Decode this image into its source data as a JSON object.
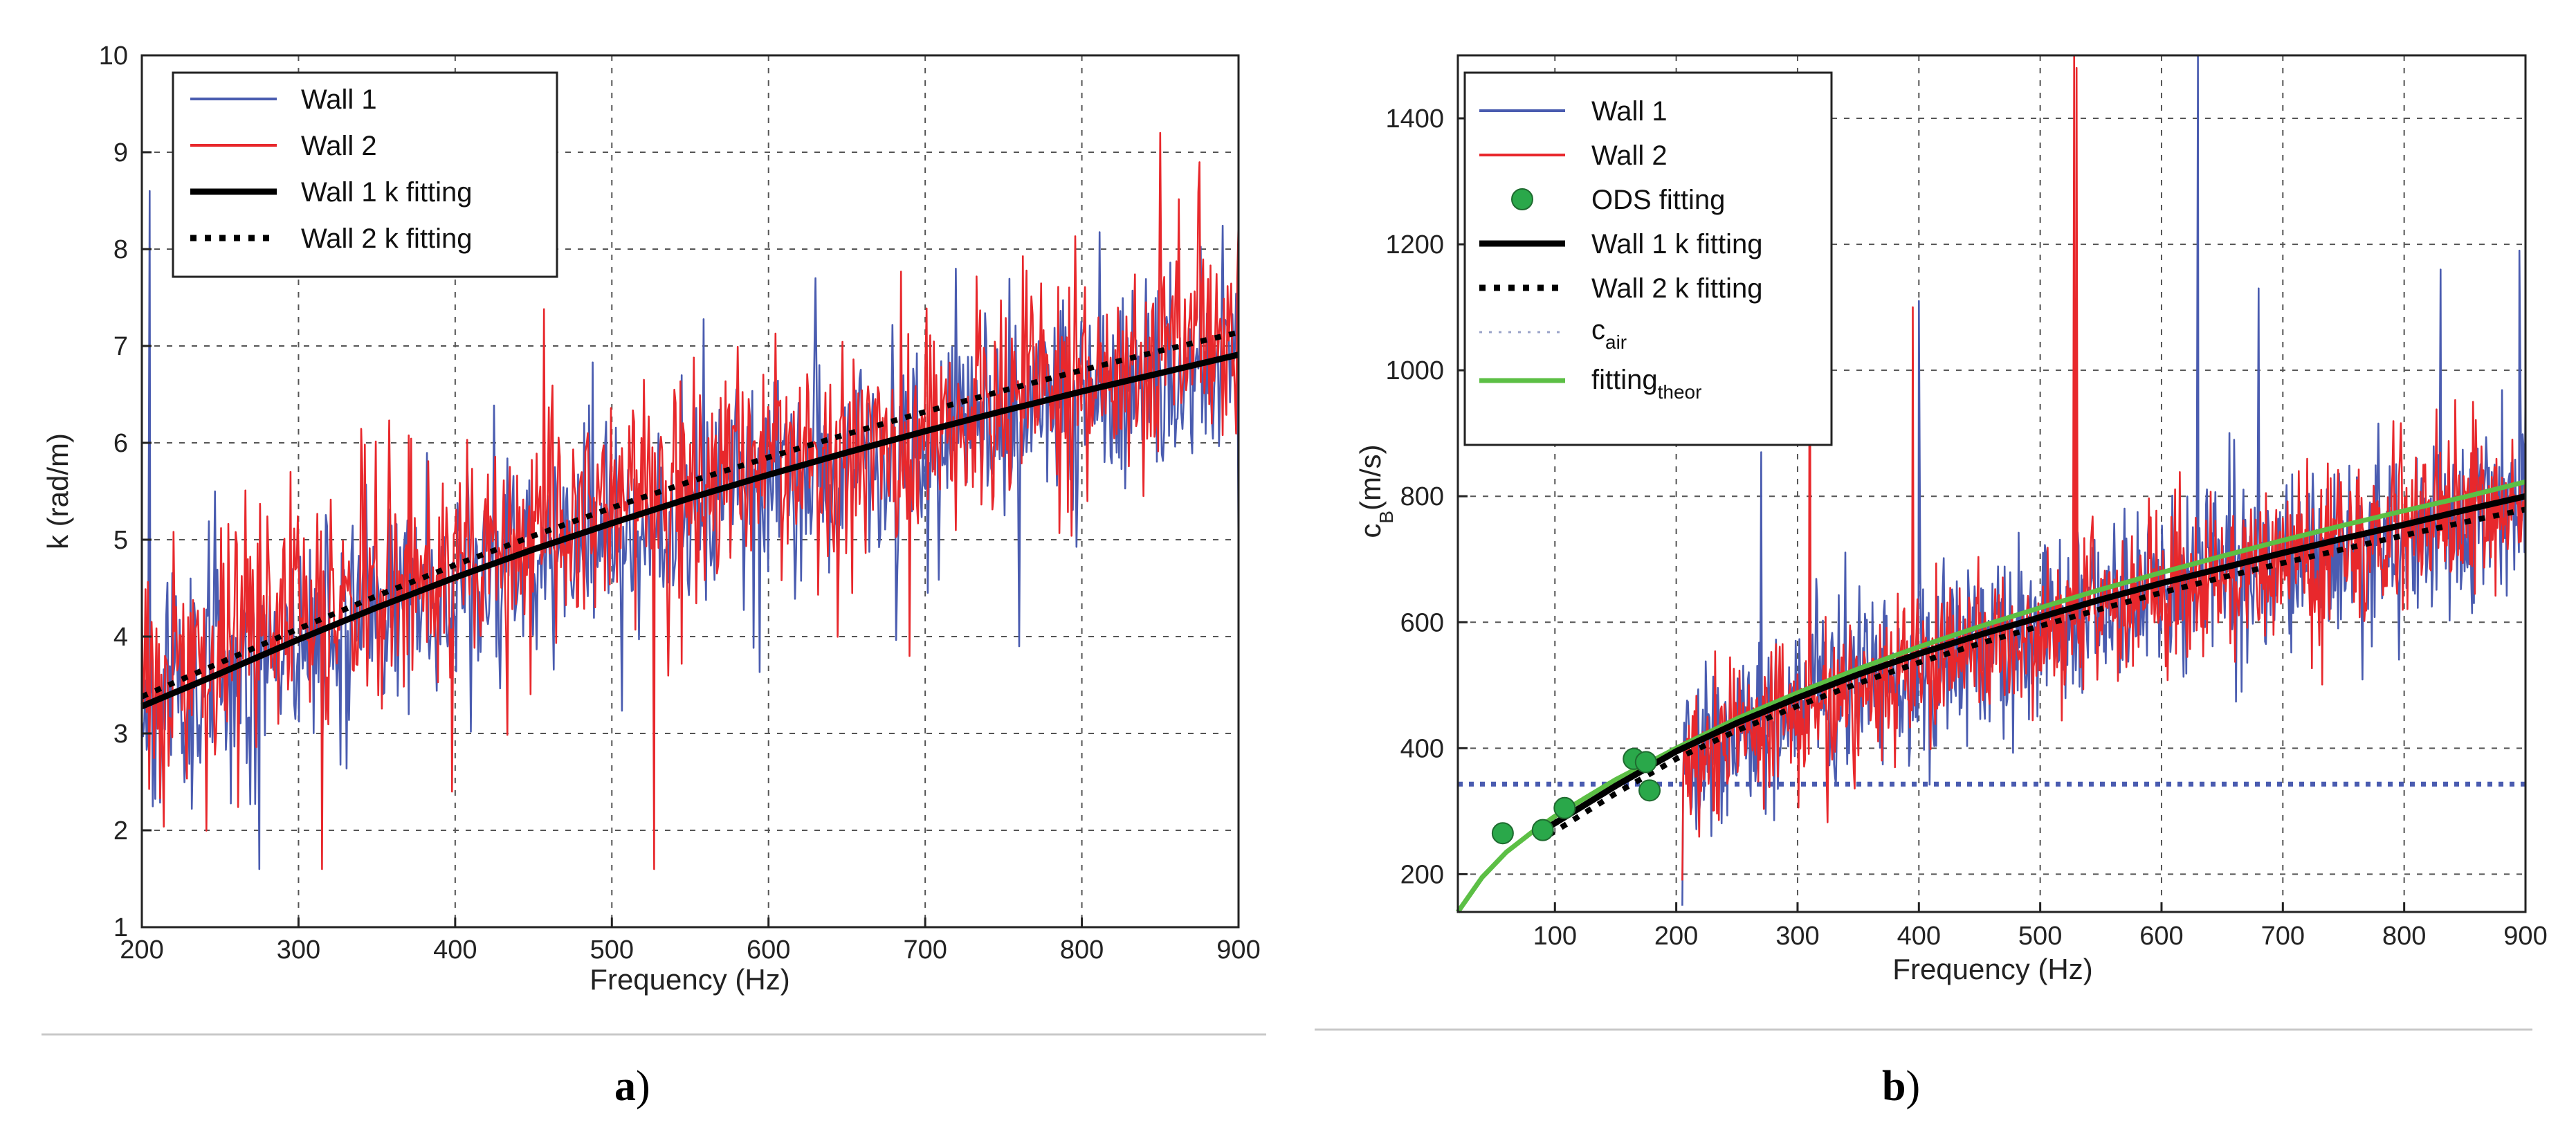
{
  "chart_data": [
    {
      "type": "line",
      "panel_label": "a",
      "panel_paren": ")",
      "title": "",
      "xlabel": "Frequency (Hz)",
      "ylabel": "k (rad/m)",
      "xlim": [
        200,
        900
      ],
      "ylim": [
        1,
        10
      ],
      "xticks": [
        200,
        300,
        400,
        500,
        600,
        700,
        800,
        900
      ],
      "yticks": [
        1,
        2,
        3,
        4,
        5,
        6,
        7,
        8,
        9,
        10
      ],
      "grid": true,
      "legend_position": "top-left",
      "series": [
        {
          "name": "Wall 1",
          "style": "noisy",
          "color": "#4a5cb0",
          "trend": [
            [
              200,
              3.3
            ],
            [
              900,
              6.9
            ]
          ],
          "noise": 0.75,
          "seed": 11,
          "spikes": [
            [
              205,
              8.6
            ],
            [
              275,
              1.6
            ],
            [
              630,
              2.4
            ],
            [
              630,
              7.7
            ],
            [
              760,
              3.9
            ],
            [
              900,
              4.8
            ]
          ]
        },
        {
          "name": "Wall 2",
          "style": "noisy",
          "color": "#e8282c",
          "trend": [
            [
              200,
              3.4
            ],
            [
              900,
              7.1
            ]
          ],
          "noise": 0.8,
          "seed": 29,
          "spikes": [
            [
              315,
              1.6
            ],
            [
              398,
              2.4
            ],
            [
              527,
              1.6
            ],
            [
              850,
              9.2
            ],
            [
              690,
              3.8
            ]
          ]
        },
        {
          "name": "Wall 1 k fitting",
          "style": "solid",
          "color": "#000000",
          "x": [
            200,
            250,
            300,
            350,
            400,
            450,
            500,
            550,
            600,
            650,
            700,
            750,
            800,
            850,
            900
          ],
          "y": [
            3.28,
            3.62,
            3.97,
            4.3,
            4.61,
            4.9,
            5.17,
            5.43,
            5.67,
            5.9,
            6.12,
            6.33,
            6.53,
            6.72,
            6.91
          ]
        },
        {
          "name": "Wall 2 k fitting",
          "style": "dotted",
          "color": "#000000",
          "x": [
            200,
            250,
            300,
            350,
            400,
            450,
            500,
            550,
            600,
            650,
            700,
            750,
            800,
            850,
            900
          ],
          "y": [
            3.38,
            3.73,
            4.08,
            4.42,
            4.74,
            5.04,
            5.33,
            5.6,
            5.85,
            6.09,
            6.32,
            6.54,
            6.75,
            6.95,
            7.14
          ]
        }
      ]
    },
    {
      "type": "line",
      "panel_label": "b",
      "panel_paren": ")",
      "title": "",
      "xlabel": "Frequency (Hz)",
      "ylabel_main": "c",
      "ylabel_sub": "B",
      "ylabel_rest": "(m/s)",
      "xlim": [
        20,
        900
      ],
      "ylim": [
        140,
        1500
      ],
      "xticks": [
        100,
        200,
        300,
        400,
        500,
        600,
        700,
        800,
        900
      ],
      "yticks": [
        200,
        400,
        600,
        800,
        1000,
        1200,
        1400
      ],
      "grid": true,
      "legend_position": "top-left",
      "series": [
        {
          "name": "Wall 1",
          "style": "noisy",
          "color": "#4a5cb0",
          "xstart": 205,
          "trend": [
            [
              205,
              380
            ],
            [
              900,
              800
            ]
          ],
          "noise": 95,
          "seed": 41,
          "spikes": [
            [
              205,
              150
            ],
            [
              270,
              870
            ],
            [
              400,
              1110
            ],
            [
              630,
              1500
            ],
            [
              680,
              1130
            ],
            [
              830,
              1160
            ],
            [
              895,
              1190
            ]
          ]
        },
        {
          "name": "Wall 2",
          "style": "noisy",
          "color": "#e8282c",
          "xstart": 205,
          "trend": [
            [
              205,
              370
            ],
            [
              900,
              800
            ]
          ],
          "noise": 80,
          "seed": 53,
          "spikes": [
            [
              205,
              190
            ],
            [
              310,
              1250
            ],
            [
              395,
              1100
            ],
            [
              528,
              1500
            ],
            [
              530,
              1480
            ]
          ]
        },
        {
          "name": "ODS fitting",
          "style": "markers",
          "color": "#2aa84a",
          "x": [
            57,
            90,
            108,
            165,
            175,
            178
          ],
          "y": [
            265,
            270,
            305,
            383,
            378,
            333
          ]
        },
        {
          "name": "Wall 1 k fitting",
          "style": "solid",
          "color": "#000000",
          "x": [
            95,
            150,
            200,
            250,
            300,
            350,
            400,
            450,
            500,
            550,
            600,
            650,
            700,
            750,
            800,
            850,
            900
          ],
          "y": [
            275,
            340,
            395,
            440,
            480,
            517,
            550,
            580,
            608,
            636,
            662,
            686,
            710,
            733,
            755,
            778,
            800
          ]
        },
        {
          "name": "Wall 2 k fitting",
          "style": "dotted",
          "color": "#000000",
          "x": [
            95,
            150,
            200,
            250,
            300,
            350,
            400,
            450,
            500,
            550,
            600,
            650,
            700,
            750,
            800,
            850,
            900
          ],
          "y": [
            262,
            328,
            383,
            428,
            467,
            503,
            536,
            566,
            594,
            621,
            647,
            671,
            694,
            716,
            738,
            759,
            779
          ]
        },
        {
          "name": "c",
          "name_sub": "air",
          "style": "hline",
          "color": "#4a5cb0",
          "y": 343
        },
        {
          "name": "fitting",
          "name_sub": "theor",
          "style": "solid",
          "color": "#5cbf45",
          "x": [
            20,
            40,
            60,
            80,
            100,
            150,
            200,
            250,
            300,
            350,
            400,
            450,
            500,
            550,
            600,
            650,
            700,
            750,
            800,
            850,
            900
          ],
          "y": [
            140,
            195,
            235,
            265,
            292,
            350,
            400,
            447,
            488,
            526,
            561,
            593,
            623,
            652,
            679,
            705,
            730,
            754,
            777,
            799,
            823
          ]
        }
      ]
    }
  ]
}
